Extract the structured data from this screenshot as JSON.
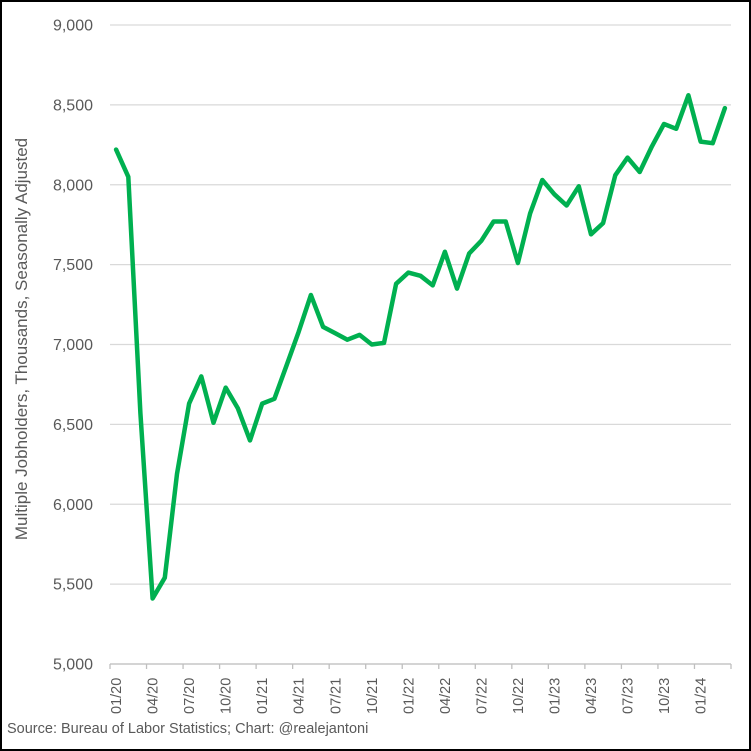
{
  "chart_data": {
    "type": "line",
    "title": "",
    "xlabel": "",
    "ylabel": "Multiple Jobholders, Thousands, Seasonally Adjusted",
    "source_note": "Source: Bureau of Labor Statistics; Chart: @realejantoni",
    "grid": "horizontal",
    "legend_position": "none",
    "ylim": [
      5000,
      9000
    ],
    "y_ticks": [
      {
        "value": 9000,
        "label": "9,000"
      },
      {
        "value": 8500,
        "label": "8,500"
      },
      {
        "value": 8000,
        "label": "8,000"
      },
      {
        "value": 7500,
        "label": "7,500"
      },
      {
        "value": 7000,
        "label": "7,000"
      },
      {
        "value": 6500,
        "label": "6,500"
      },
      {
        "value": 6000,
        "label": "6,000"
      },
      {
        "value": 5500,
        "label": "5,500"
      },
      {
        "value": 5000,
        "label": "5,000"
      }
    ],
    "x_tick_interval": 3,
    "categories": [
      "01/20",
      "02/20",
      "03/20",
      "04/20",
      "05/20",
      "06/20",
      "07/20",
      "08/20",
      "09/20",
      "10/20",
      "11/20",
      "12/20",
      "01/21",
      "02/21",
      "03/21",
      "04/21",
      "05/21",
      "06/21",
      "07/21",
      "08/21",
      "09/21",
      "10/21",
      "11/21",
      "12/21",
      "01/22",
      "02/22",
      "03/22",
      "04/22",
      "05/22",
      "06/22",
      "07/22",
      "08/22",
      "09/22",
      "10/22",
      "11/22",
      "12/22",
      "01/23",
      "02/23",
      "03/23",
      "04/23",
      "05/23",
      "06/23",
      "07/23",
      "08/23",
      "09/23",
      "10/23",
      "11/23",
      "12/23",
      "01/24",
      "02/24",
      "03/24"
    ],
    "series": [
      {
        "name": "Multiple Jobholders",
        "color": "#00B050",
        "values": [
          8220,
          8050,
          6570,
          5410,
          5540,
          6190,
          6630,
          6800,
          6510,
          6730,
          6600,
          6400,
          6630,
          6660,
          6870,
          7080,
          7310,
          7110,
          7070,
          7030,
          7060,
          7000,
          7010,
          7380,
          7450,
          7430,
          7370,
          7580,
          7350,
          7570,
          7650,
          7770,
          7770,
          7510,
          7820,
          8030,
          7940,
          7870,
          7990,
          7690,
          7760,
          8060,
          8170,
          8080,
          8240,
          8380,
          8350,
          8560,
          8270,
          8260,
          8480
        ]
      }
    ]
  },
  "style": {
    "line_color": "#00B050",
    "gridline_color": "#D9D9D9",
    "axis_color": "#BFBFBF",
    "label_color": "#595959",
    "border_color": "#000000",
    "background": "#FFFFFF"
  }
}
